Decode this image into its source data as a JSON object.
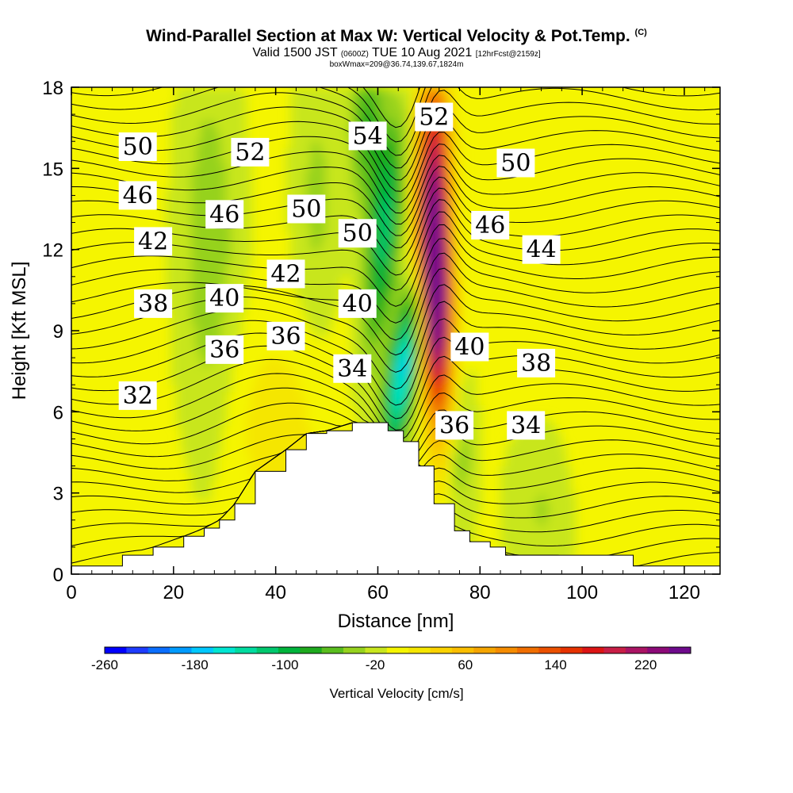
{
  "title": {
    "main": "Wind-Parallel Section at Max W: Vertical Velocity & Pot.Temp.",
    "copyright": "(C)",
    "valid_prefix": "Valid 1500 JST",
    "valid_utc": "(0600Z)",
    "valid_date": "TUE 10 Aug 2021",
    "forecast": "[12hrFcst@2159z]",
    "box_info": "boxWmax=209@36.74,139.67,1824m"
  },
  "chart_data": {
    "type": "heatmap",
    "xlabel": "Distance [nm]",
    "ylabel": "Height [Kft MSL]",
    "xlim": [
      0,
      127
    ],
    "ylim": [
      0,
      18
    ],
    "x_ticks": [
      "0",
      "20",
      "40",
      "60",
      "80",
      "100",
      "120"
    ],
    "y_ticks": [
      "0",
      "3",
      "6",
      "9",
      "12",
      "15",
      "18"
    ],
    "colorbar": {
      "title": "Vertical Velocity [cm/s]",
      "min": -260,
      "max": 260,
      "step": 20,
      "tick_labels": [
        "-260",
        "-180",
        "-100",
        "-20",
        "60",
        "140",
        "220"
      ],
      "colors": [
        "#0000ff",
        "#1e3cff",
        "#0a6eff",
        "#009bff",
        "#00c8ff",
        "#00e6d2",
        "#00dca0",
        "#00c86e",
        "#00b43c",
        "#1eaa1e",
        "#5abe1e",
        "#96d21e",
        "#c8e61e",
        "#f5f500",
        "#f5e600",
        "#fad200",
        "#fabe00",
        "#f5a500",
        "#f58c00",
        "#f06e00",
        "#eb5000",
        "#e63200",
        "#dc1414",
        "#c81e46",
        "#aa1464",
        "#8c0a78",
        "#6e0a8c"
      ]
    },
    "theta_contour_labels": [
      {
        "x": 13,
        "y": 15.8,
        "text": "50"
      },
      {
        "x": 13,
        "y": 14.0,
        "text": "46"
      },
      {
        "x": 16,
        "y": 12.3,
        "text": "42"
      },
      {
        "x": 16,
        "y": 10.0,
        "text": "38"
      },
      {
        "x": 13,
        "y": 6.6,
        "text": "32"
      },
      {
        "x": 35,
        "y": 15.6,
        "text": "52"
      },
      {
        "x": 30,
        "y": 13.3,
        "text": "46"
      },
      {
        "x": 46,
        "y": 13.5,
        "text": "50"
      },
      {
        "x": 42,
        "y": 11.1,
        "text": "42"
      },
      {
        "x": 30,
        "y": 10.2,
        "text": "40"
      },
      {
        "x": 42,
        "y": 8.8,
        "text": "36"
      },
      {
        "x": 30,
        "y": 8.3,
        "text": "36"
      },
      {
        "x": 58,
        "y": 16.2,
        "text": "54"
      },
      {
        "x": 56,
        "y": 12.6,
        "text": "50"
      },
      {
        "x": 56,
        "y": 10.0,
        "text": "40"
      },
      {
        "x": 55,
        "y": 7.6,
        "text": "34"
      },
      {
        "x": 71,
        "y": 16.9,
        "text": "52"
      },
      {
        "x": 87,
        "y": 15.2,
        "text": "50"
      },
      {
        "x": 82,
        "y": 12.9,
        "text": "46"
      },
      {
        "x": 92,
        "y": 12.0,
        "text": "44"
      },
      {
        "x": 78,
        "y": 8.4,
        "text": "40"
      },
      {
        "x": 91,
        "y": 7.8,
        "text": "38"
      },
      {
        "x": 75,
        "y": 5.5,
        "text": "36"
      },
      {
        "x": 89,
        "y": 5.5,
        "text": "34"
      }
    ],
    "terrain_nm_kft": [
      [
        0,
        0.3
      ],
      [
        10,
        0.7
      ],
      [
        16,
        1.0
      ],
      [
        22,
        1.4
      ],
      [
        26,
        1.7
      ],
      [
        29,
        2.0
      ],
      [
        32,
        2.6
      ],
      [
        36,
        3.8
      ],
      [
        42,
        4.6
      ],
      [
        46,
        5.2
      ],
      [
        50,
        5.3
      ],
      [
        55,
        5.6
      ],
      [
        60,
        5.6
      ],
      [
        62,
        5.3
      ],
      [
        65,
        4.9
      ],
      [
        68,
        4.0
      ],
      [
        71,
        2.6
      ],
      [
        75,
        1.6
      ],
      [
        78,
        1.2
      ],
      [
        82,
        1.0
      ],
      [
        85,
        0.7
      ],
      [
        95,
        0.7
      ],
      [
        110,
        0.3
      ],
      [
        127,
        0.3
      ]
    ]
  }
}
